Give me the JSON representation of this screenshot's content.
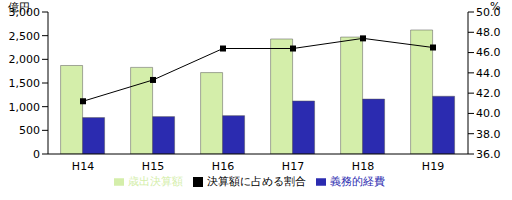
{
  "chart_data": {
    "type": "bar",
    "categories": [
      "H14",
      "H15",
      "H16",
      "H17",
      "H18",
      "H19"
    ],
    "y_label": "億円",
    "y2_label": "%",
    "ylim": [
      0,
      3000
    ],
    "yticks": [
      0,
      500,
      {
        "value": 1000,
        "label": "1,000"
      },
      {
        "value": 1500,
        "label": "1,500"
      },
      {
        "value": 2000,
        "label": "2,000"
      },
      {
        "value": 2500,
        "label": "2,500"
      },
      {
        "value": 3000,
        "label": "3,000"
      }
    ],
    "y2lim": [
      36,
      50
    ],
    "y2ticks": [
      {
        "value": 36,
        "label": "36.0"
      },
      {
        "value": 38,
        "label": "38.0"
      },
      {
        "value": 40,
        "label": "40.0"
      },
      {
        "value": 42,
        "label": "42.0"
      },
      {
        "value": 44,
        "label": "44.0"
      },
      {
        "value": 46,
        "label": "46.0"
      },
      {
        "value": 48,
        "label": "48.0"
      },
      {
        "value": 50,
        "label": "50.0"
      }
    ],
    "grid": false,
    "legend": "bottom",
    "series": [
      {
        "name": "歳出決算額",
        "type": "bar",
        "color": "#d4eeaa",
        "values": [
          1870,
          1830,
          1720,
          2430,
          2470,
          2620
        ]
      },
      {
        "name": "義務的経費",
        "type": "bar",
        "color": "#2b2bb0",
        "values": [
          770,
          790,
          810,
          1120,
          1160,
          1220
        ]
      },
      {
        "name": "決算額に占める割合",
        "type": "line",
        "axis": "y2",
        "color": "#000000",
        "marker": "square",
        "values": [
          41.2,
          43.3,
          46.4,
          46.4,
          47.4,
          46.5
        ]
      }
    ]
  }
}
